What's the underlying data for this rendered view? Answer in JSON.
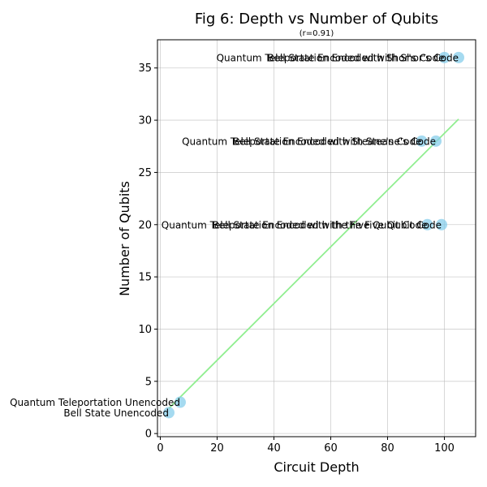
{
  "chart_data": {
    "type": "scatter",
    "title": "Fig 6: Depth vs Number of Qubits",
    "subtitle": "(r=0.91)",
    "xlabel": "Circuit Depth",
    "ylabel": "Number of Qubits",
    "xlim": [
      -1,
      111
    ],
    "ylim": [
      -0.3,
      37.7
    ],
    "xticks": [
      0,
      20,
      40,
      60,
      80,
      100
    ],
    "yticks": [
      0,
      5,
      10,
      15,
      20,
      25,
      30,
      35
    ],
    "grid": true,
    "point_color": "#87CEEB",
    "trend_color": "#90EE90",
    "points": [
      {
        "x": 3,
        "y": 2,
        "label": "Bell State Unencoded"
      },
      {
        "x": 7,
        "y": 3,
        "label": "Quantum Teleportation Unencoded"
      },
      {
        "x": 94,
        "y": 20,
        "label": "Bell State Encoded with the Five Qubit Code"
      },
      {
        "x": 99,
        "y": 20,
        "label": "Quantum Teleportation Encoded with the Five Qubit Code"
      },
      {
        "x": 92,
        "y": 28,
        "label": "Bell State Encoded with Steane's Code"
      },
      {
        "x": 97,
        "y": 28,
        "label": "Quantum Teleportation Encoded with Steane's Code"
      },
      {
        "x": 100,
        "y": 36,
        "label": "Bell State Encoded with Shor's Code"
      },
      {
        "x": 105,
        "y": 36,
        "label": "Quantum Teleportation Encoded with Shor's Code"
      }
    ],
    "trendline": {
      "x": [
        3,
        105
      ],
      "y": [
        2.4,
        30.1
      ]
    }
  }
}
